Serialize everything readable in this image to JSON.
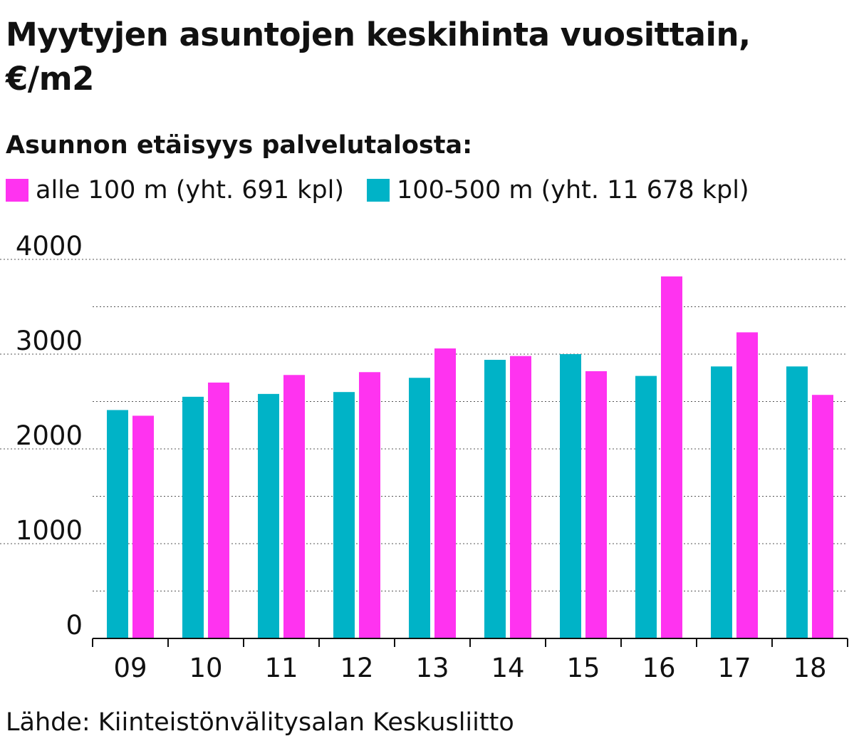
{
  "chart_data": {
    "type": "bar",
    "title": "Myytyjen asuntojen keskihinta vuosittain, €/m2",
    "subtitle": "Asunnon etäisyys palvelutalosta:",
    "categories": [
      "09",
      "10",
      "11",
      "12",
      "13",
      "14",
      "15",
      "16",
      "17",
      "18"
    ],
    "series": [
      {
        "name": "100-500 m (yht. 11 678 kpl)",
        "color": "#00b3c7",
        "values": [
          2410,
          2550,
          2580,
          2600,
          2750,
          2940,
          3000,
          2770,
          2870,
          2870
        ]
      },
      {
        "name": "alle 100 m (yht. 691 kpl)",
        "color": "#ff33f0",
        "values": [
          2350,
          2700,
          2780,
          2810,
          3060,
          2980,
          2820,
          3820,
          3230,
          2570
        ]
      }
    ],
    "ylim": [
      0,
      4000
    ],
    "yticks": [
      "0",
      "1000",
      "2000",
      "3000",
      "4000"
    ],
    "grid": true,
    "legend_position": "top",
    "xlabel": "",
    "ylabel": ""
  },
  "legend": [
    {
      "label": "alle 100 m (yht. 691 kpl)",
      "color": "#ff33f0"
    },
    {
      "label": "100-500 m (yht. 11 678 kpl)",
      "color": "#00b3c7"
    }
  ],
  "source": "Lähde: Kiinteistönvälitysalan Keskusliitto"
}
